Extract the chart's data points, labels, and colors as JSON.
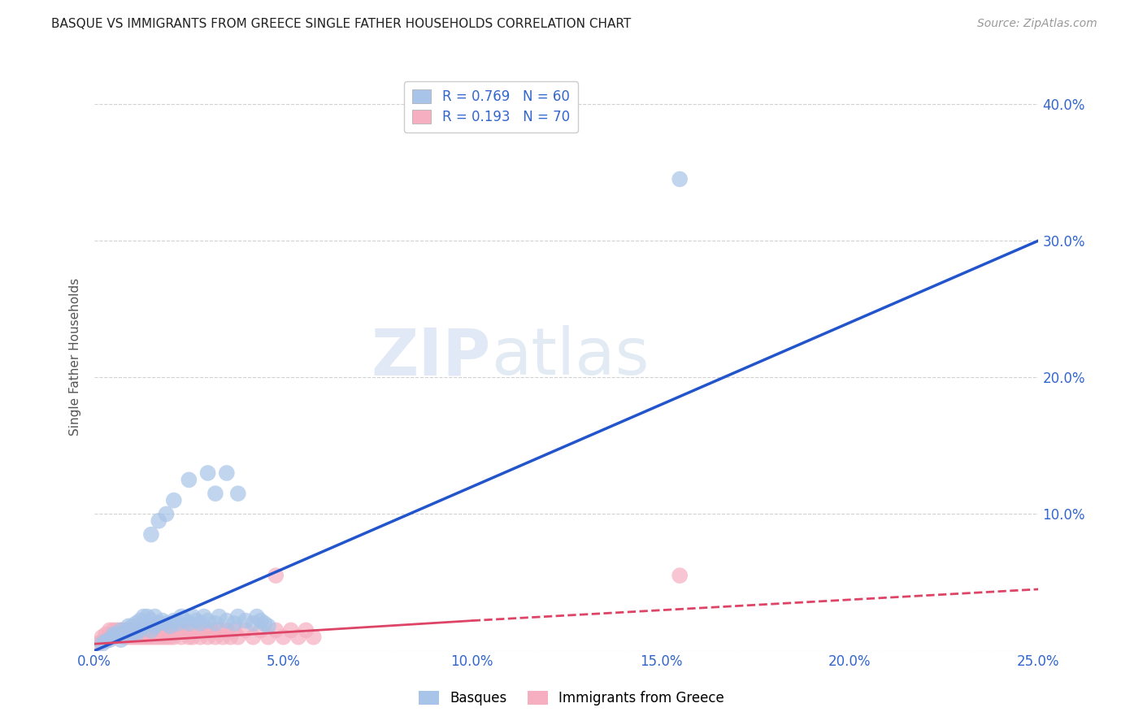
{
  "title": "BASQUE VS IMMIGRANTS FROM GREECE SINGLE FATHER HOUSEHOLDS CORRELATION CHART",
  "source": "Source: ZipAtlas.com",
  "ylabel": "Single Father Households",
  "xlim": [
    0,
    0.25
  ],
  "ylim": [
    0,
    0.43
  ],
  "xticks": [
    0,
    0.05,
    0.1,
    0.15,
    0.2,
    0.25
  ],
  "xtick_labels": [
    "0.0%",
    "5.0%",
    "10.0%",
    "15.0%",
    "20.0%",
    "25.0%"
  ],
  "yticks": [
    0.0,
    0.1,
    0.2,
    0.3,
    0.4
  ],
  "ytick_labels": [
    "",
    "10.0%",
    "20.0%",
    "30.0%",
    "40.0%"
  ],
  "legend1_label": "R = 0.769   N = 60",
  "legend2_label": "R = 0.193   N = 70",
  "basque_color": "#a8c4e8",
  "greece_color": "#f5afc0",
  "trendline1_color": "#2255cc",
  "trendline2_color": "#dd4466",
  "watermark_text": "ZIPatlas",
  "basques_legend": "Basques",
  "greece_legend": "Immigrants from Greece",
  "basque_x": [
    0.002,
    0.003,
    0.004,
    0.005,
    0.005,
    0.006,
    0.007,
    0.007,
    0.008,
    0.009,
    0.009,
    0.01,
    0.01,
    0.011,
    0.011,
    0.012,
    0.012,
    0.013,
    0.013,
    0.014,
    0.014,
    0.015,
    0.015,
    0.016,
    0.016,
    0.017,
    0.018,
    0.019,
    0.02,
    0.021,
    0.022,
    0.023,
    0.024,
    0.025,
    0.026,
    0.027,
    0.028,
    0.029,
    0.03,
    0.032,
    0.033,
    0.035,
    0.037,
    0.038,
    0.04,
    0.042,
    0.043,
    0.044,
    0.045,
    0.046,
    0.015,
    0.017,
    0.019,
    0.021,
    0.025,
    0.03,
    0.032,
    0.035,
    0.038,
    0.155
  ],
  "basque_y": [
    0.005,
    0.007,
    0.008,
    0.01,
    0.012,
    0.012,
    0.008,
    0.015,
    0.013,
    0.015,
    0.018,
    0.013,
    0.018,
    0.012,
    0.02,
    0.015,
    0.022,
    0.018,
    0.025,
    0.02,
    0.025,
    0.015,
    0.022,
    0.018,
    0.025,
    0.02,
    0.022,
    0.02,
    0.018,
    0.022,
    0.02,
    0.025,
    0.022,
    0.02,
    0.025,
    0.022,
    0.02,
    0.025,
    0.022,
    0.02,
    0.025,
    0.022,
    0.02,
    0.025,
    0.022,
    0.02,
    0.025,
    0.022,
    0.02,
    0.018,
    0.085,
    0.095,
    0.1,
    0.11,
    0.125,
    0.13,
    0.115,
    0.13,
    0.115,
    0.345
  ],
  "greece_x": [
    0.001,
    0.002,
    0.002,
    0.003,
    0.003,
    0.004,
    0.004,
    0.005,
    0.005,
    0.006,
    0.006,
    0.007,
    0.007,
    0.008,
    0.008,
    0.009,
    0.009,
    0.01,
    0.01,
    0.011,
    0.011,
    0.012,
    0.012,
    0.013,
    0.013,
    0.014,
    0.014,
    0.015,
    0.015,
    0.016,
    0.016,
    0.017,
    0.017,
    0.018,
    0.018,
    0.019,
    0.019,
    0.02,
    0.02,
    0.021,
    0.022,
    0.023,
    0.024,
    0.025,
    0.025,
    0.026,
    0.027,
    0.028,
    0.029,
    0.03,
    0.031,
    0.032,
    0.033,
    0.034,
    0.035,
    0.036,
    0.037,
    0.038,
    0.04,
    0.042,
    0.044,
    0.046,
    0.048,
    0.05,
    0.052,
    0.054,
    0.056,
    0.058,
    0.048,
    0.155
  ],
  "greece_y": [
    0.005,
    0.007,
    0.01,
    0.008,
    0.012,
    0.01,
    0.015,
    0.01,
    0.015,
    0.012,
    0.015,
    0.012,
    0.015,
    0.01,
    0.015,
    0.01,
    0.015,
    0.01,
    0.015,
    0.01,
    0.015,
    0.01,
    0.015,
    0.01,
    0.015,
    0.01,
    0.015,
    0.01,
    0.015,
    0.01,
    0.015,
    0.01,
    0.015,
    0.01,
    0.015,
    0.01,
    0.015,
    0.01,
    0.015,
    0.01,
    0.015,
    0.01,
    0.015,
    0.01,
    0.015,
    0.01,
    0.015,
    0.01,
    0.015,
    0.01,
    0.015,
    0.01,
    0.015,
    0.01,
    0.015,
    0.01,
    0.015,
    0.01,
    0.015,
    0.01,
    0.015,
    0.01,
    0.015,
    0.01,
    0.015,
    0.01,
    0.015,
    0.01,
    0.055,
    0.055
  ],
  "basque_trendline": [
    [
      0.0,
      0.25
    ],
    [
      0.0,
      0.3
    ]
  ],
  "greece_trendline_solid": [
    [
      0.0,
      0.1
    ],
    [
      0.005,
      0.022
    ]
  ],
  "greece_trendline_dashed": [
    [
      0.1,
      0.25
    ],
    [
      0.022,
      0.045
    ]
  ]
}
